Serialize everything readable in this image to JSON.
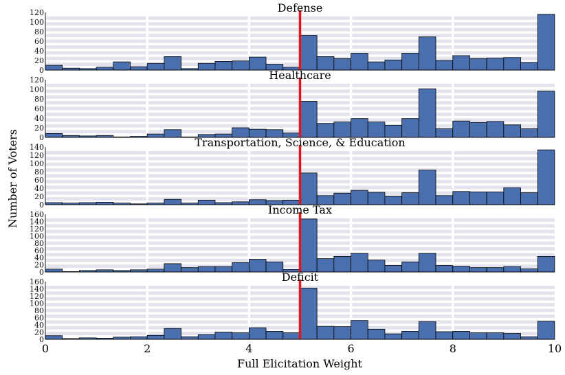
{
  "chart_data": {
    "type": "bar",
    "xlabel": "Full Elicitation Weight",
    "ylabel": "Number of Voters",
    "xlim": [
      0,
      10
    ],
    "x_ticks": [
      "0",
      "2",
      "4",
      "6",
      "8",
      "10"
    ],
    "x_tick_values": [
      0,
      2,
      4,
      6,
      8,
      10
    ],
    "bin_width": 0.3333,
    "grid": true,
    "reference_line": {
      "x": 5,
      "color": "#e8141b"
    },
    "bar_color": "#4a6fae",
    "grid_color": "#e3e3ee",
    "panels": [
      {
        "title": "Defense",
        "ylim": [
          0,
          120
        ],
        "y_ticks": [
          "0",
          "20",
          "40",
          "60",
          "80",
          "100",
          "120"
        ],
        "y_tick_values": [
          0,
          20,
          40,
          60,
          80,
          100,
          120
        ],
        "values": [
          10,
          4,
          3,
          6,
          17,
          7,
          14,
          28,
          3,
          14,
          18,
          19,
          27,
          12,
          6,
          72,
          28,
          24,
          35,
          17,
          21,
          35,
          69,
          20,
          30,
          24,
          25,
          26,
          16,
          116
        ]
      },
      {
        "title": "Healthcare",
        "ylim": [
          0,
          120
        ],
        "y_ticks": [
          "0",
          "20",
          "40",
          "60",
          "80",
          "100",
          "120"
        ],
        "y_tick_values": [
          0,
          20,
          40,
          60,
          80,
          100,
          120
        ],
        "values": [
          8,
          4,
          3,
          4,
          1,
          2,
          7,
          16,
          1,
          6,
          7,
          20,
          17,
          16,
          9,
          75,
          29,
          32,
          39,
          32,
          25,
          39,
          101,
          18,
          34,
          31,
          33,
          26,
          18,
          96
        ]
      },
      {
        "title": "Transportation, Science, & Education",
        "ylim": [
          0,
          140
        ],
        "y_ticks": [
          "0",
          "20",
          "40",
          "60",
          "80",
          "100",
          "120",
          "140"
        ],
        "y_tick_values": [
          0,
          20,
          40,
          60,
          80,
          100,
          120,
          140
        ],
        "values": [
          5,
          4,
          5,
          6,
          4,
          2,
          4,
          13,
          4,
          11,
          5,
          7,
          12,
          10,
          11,
          77,
          22,
          28,
          35,
          30,
          21,
          29,
          84,
          22,
          32,
          31,
          31,
          41,
          29,
          133
        ]
      },
      {
        "title": "Income Tax",
        "ylim": [
          0,
          160
        ],
        "y_ticks": [
          "0",
          "20",
          "40",
          "60",
          "80",
          "100",
          "120",
          "140",
          "160"
        ],
        "y_tick_values": [
          0,
          20,
          40,
          60,
          80,
          100,
          120,
          140,
          160
        ],
        "values": [
          8,
          1,
          4,
          6,
          4,
          6,
          8,
          23,
          12,
          15,
          15,
          26,
          35,
          28,
          7,
          147,
          37,
          43,
          52,
          33,
          18,
          28,
          52,
          18,
          16,
          12,
          12,
          15,
          9,
          43
        ]
      },
      {
        "title": "Deficit",
        "ylim": [
          0,
          160
        ],
        "y_ticks": [
          "0",
          "20",
          "40",
          "60",
          "80",
          "100",
          "120",
          "140",
          "160"
        ],
        "y_tick_values": [
          0,
          20,
          40,
          60,
          80,
          100,
          120,
          140,
          160
        ],
        "values": [
          10,
          2,
          4,
          3,
          6,
          7,
          11,
          30,
          7,
          13,
          20,
          18,
          32,
          22,
          18,
          142,
          36,
          35,
          52,
          28,
          15,
          22,
          49,
          21,
          22,
          18,
          18,
          16,
          7,
          50
        ]
      }
    ]
  }
}
